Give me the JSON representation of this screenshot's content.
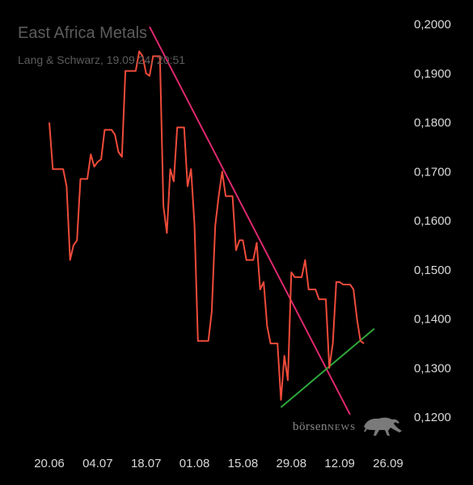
{
  "header": {
    "title": "East Africa Metals",
    "subtitle": "Lang & Schwarz, 19.09.24, 20:51"
  },
  "watermark": {
    "text_lower": "börsen",
    "text_caps": "NEWS",
    "icon": "bull-icon"
  },
  "colors": {
    "background": "#000000",
    "price_line": "#ef4b3a",
    "resistance_trendline": "#e0286e",
    "support_trendline": "#2fa83a",
    "text": "#d9d9d9"
  },
  "chart_data": {
    "type": "line",
    "title": "East Africa Metals",
    "subtitle": "Lang & Schwarz, 19.09.24, 20:51",
    "x_tick_labels": [
      "20.06",
      "04.07",
      "18.07",
      "01.08",
      "15.08",
      "29.08",
      "12.09",
      "26.09"
    ],
    "y_tick_labels": [
      "0,1200",
      "0,1300",
      "0,1400",
      "0,1500",
      "0,1600",
      "0,1700",
      "0,1800",
      "0,1900",
      "0,2000"
    ],
    "ylim": [
      0.12,
      0.2
    ],
    "xlim": [
      "2024-06-20",
      "2024-09-26"
    ],
    "y_axis_position": "right",
    "grid": false,
    "series": [
      {
        "color": "#ef4b3a",
        "points": [
          [
            "2024-06-20",
            0.18
          ],
          [
            "2024-06-21",
            0.1705
          ],
          [
            "2024-06-24",
            0.1705
          ],
          [
            "2024-06-25",
            0.167
          ],
          [
            "2024-06-26",
            0.152
          ],
          [
            "2024-06-27",
            0.155
          ],
          [
            "2024-06-28",
            0.156
          ],
          [
            "2024-06-29",
            0.1685
          ],
          [
            "2024-07-01",
            0.1685
          ],
          [
            "2024-07-02",
            0.1735
          ],
          [
            "2024-07-03",
            0.171
          ],
          [
            "2024-07-04",
            0.172
          ],
          [
            "2024-07-05",
            0.1725
          ],
          [
            "2024-07-06",
            0.1785
          ],
          [
            "2024-07-08",
            0.1785
          ],
          [
            "2024-07-09",
            0.1775
          ],
          [
            "2024-07-10",
            0.174
          ],
          [
            "2024-07-11",
            0.173
          ],
          [
            "2024-07-12",
            0.1905
          ],
          [
            "2024-07-15",
            0.1905
          ],
          [
            "2024-07-16",
            0.1945
          ],
          [
            "2024-07-17",
            0.1935
          ],
          [
            "2024-07-18",
            0.19
          ],
          [
            "2024-07-19",
            0.1895
          ],
          [
            "2024-07-20",
            0.1935
          ],
          [
            "2024-07-22",
            0.1935
          ],
          [
            "2024-07-23",
            0.163
          ],
          [
            "2024-07-24",
            0.1575
          ],
          [
            "2024-07-25",
            0.1705
          ],
          [
            "2024-07-26",
            0.168
          ],
          [
            "2024-07-27",
            0.179
          ],
          [
            "2024-07-29",
            0.179
          ],
          [
            "2024-07-30",
            0.167
          ],
          [
            "2024-07-31",
            0.1705
          ],
          [
            "2024-08-01",
            0.159
          ],
          [
            "2024-08-02",
            0.1355
          ],
          [
            "2024-08-05",
            0.1355
          ],
          [
            "2024-08-06",
            0.1415
          ],
          [
            "2024-08-07",
            0.159
          ],
          [
            "2024-08-08",
            0.165
          ],
          [
            "2024-08-09",
            0.17
          ],
          [
            "2024-08-10",
            0.165
          ],
          [
            "2024-08-12",
            0.165
          ],
          [
            "2024-08-13",
            0.154
          ],
          [
            "2024-08-14",
            0.156
          ],
          [
            "2024-08-15",
            0.156
          ],
          [
            "2024-08-16",
            0.152
          ],
          [
            "2024-08-18",
            0.152
          ],
          [
            "2024-08-19",
            0.1555
          ],
          [
            "2024-08-20",
            0.146
          ],
          [
            "2024-08-21",
            0.1475
          ],
          [
            "2024-08-22",
            0.1385
          ],
          [
            "2024-08-23",
            0.135
          ],
          [
            "2024-08-25",
            0.135
          ],
          [
            "2024-08-26",
            0.1235
          ],
          [
            "2024-08-27",
            0.1325
          ],
          [
            "2024-08-28",
            0.1275
          ],
          [
            "2024-08-29",
            0.1495
          ],
          [
            "2024-08-30",
            0.1485
          ],
          [
            "2024-09-01",
            0.1485
          ],
          [
            "2024-09-02",
            0.152
          ],
          [
            "2024-09-03",
            0.146
          ],
          [
            "2024-09-05",
            0.146
          ],
          [
            "2024-09-06",
            0.144
          ],
          [
            "2024-09-08",
            0.144
          ],
          [
            "2024-09-09",
            0.13
          ],
          [
            "2024-09-10",
            0.135
          ],
          [
            "2024-09-11",
            0.1475
          ],
          [
            "2024-09-12",
            0.1475
          ],
          [
            "2024-09-13",
            0.147
          ],
          [
            "2024-09-15",
            0.147
          ],
          [
            "2024-09-16",
            0.146
          ],
          [
            "2024-09-17",
            0.14
          ],
          [
            "2024-09-18",
            0.1355
          ],
          [
            "2024-09-19",
            0.135
          ]
        ]
      }
    ],
    "trendlines": [
      {
        "kind": "resistance",
        "color": "#e0286e",
        "from": [
          "2024-07-19",
          0.1995
        ],
        "to": [
          "2024-09-15",
          0.1205
        ]
      },
      {
        "kind": "support",
        "color": "#2fa83a",
        "from": [
          "2024-08-26",
          0.122
        ],
        "to": [
          "2024-09-22",
          0.138
        ]
      }
    ]
  }
}
